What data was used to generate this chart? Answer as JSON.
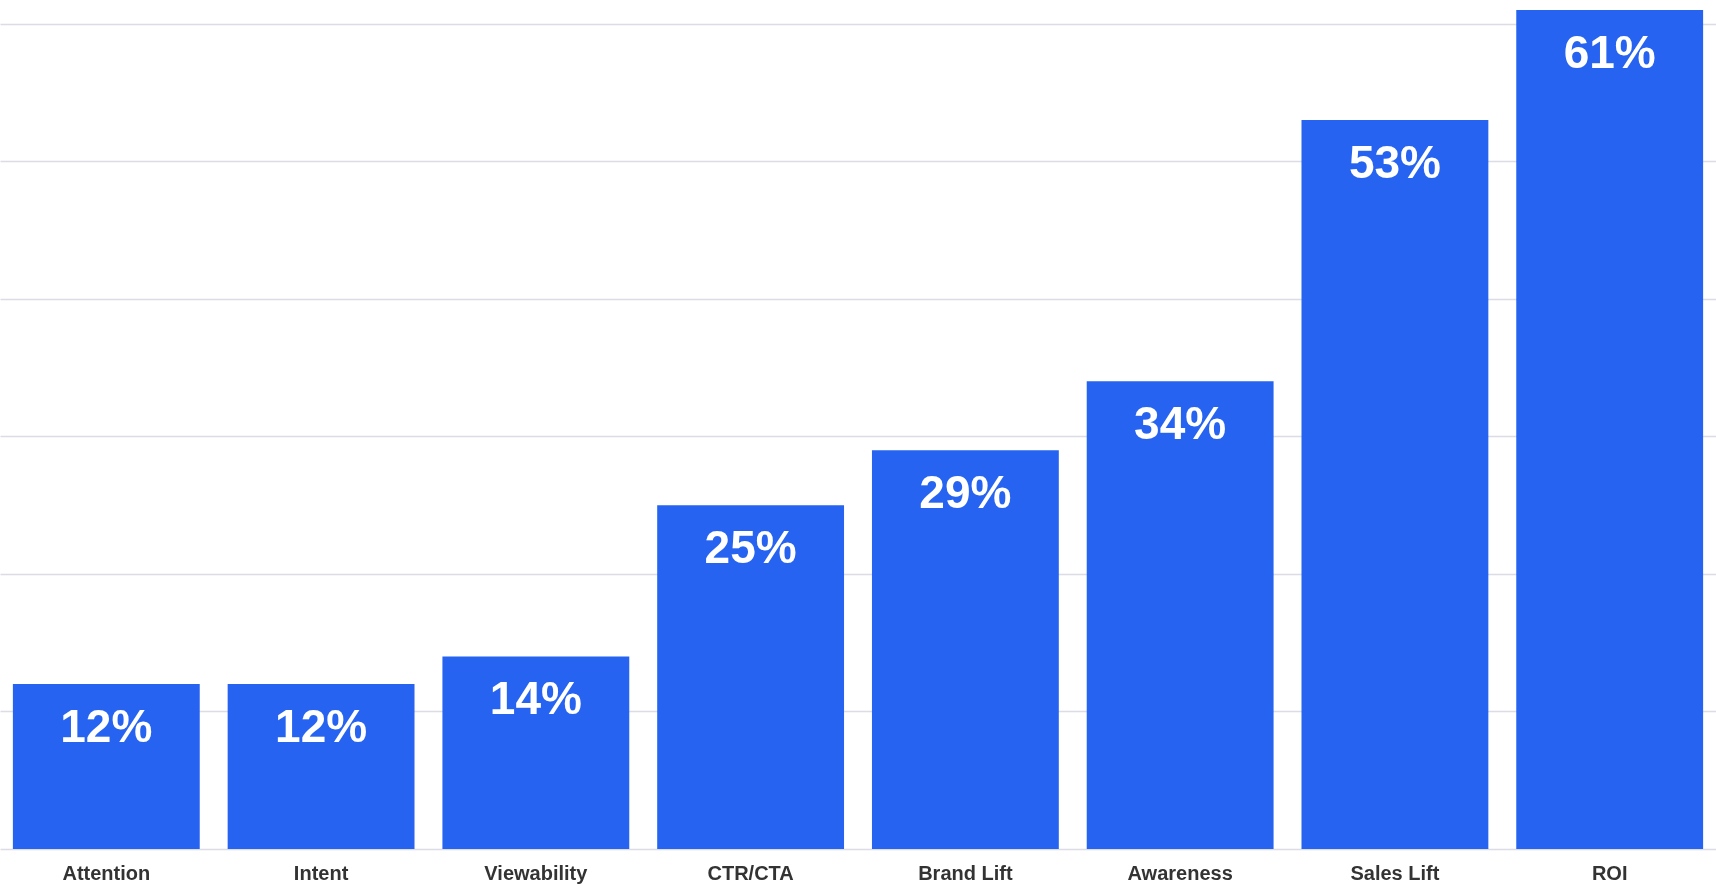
{
  "chart_data": {
    "type": "bar",
    "categories": [
      "Attention",
      "Intent",
      "Viewability",
      "CTR/CTA",
      "Brand Lift",
      "Awareness",
      "Sales Lift",
      "ROI"
    ],
    "values": [
      12,
      12,
      14,
      25,
      29,
      34,
      53,
      61
    ],
    "value_labels": [
      "12%",
      "12%",
      "14%",
      "25%",
      "29%",
      "34%",
      "53%",
      "61%"
    ],
    "color": "#2563f0",
    "yticks": [
      {
        "value": 0,
        "label": null
      },
      {
        "value": 10,
        "label": null
      },
      {
        "value": 20,
        "label": null
      },
      {
        "value": 30,
        "label": null
      },
      {
        "value": 40,
        "label": null
      },
      {
        "value": 50,
        "label": null
      },
      {
        "value": 60,
        "label": null
      }
    ],
    "grid": "y",
    "tick_labels": "x"
  }
}
